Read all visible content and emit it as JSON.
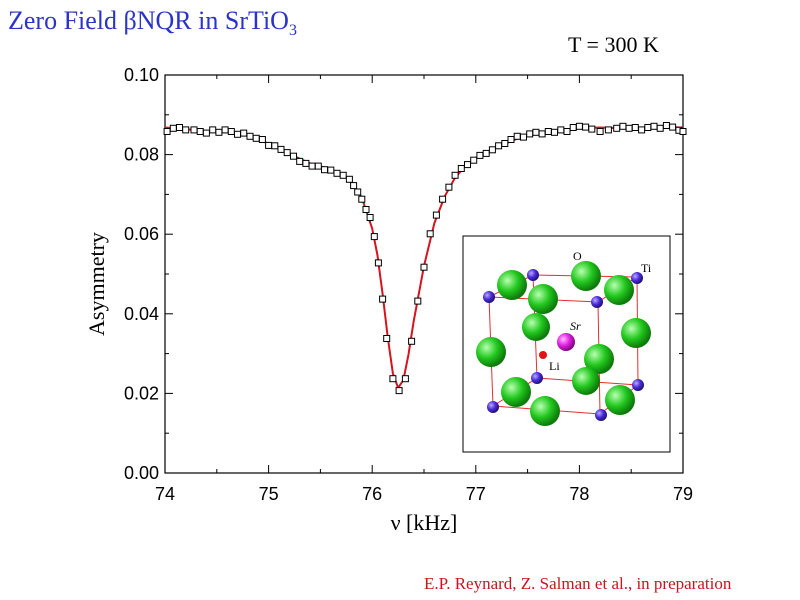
{
  "header": {
    "title_main": "Zero Field βNQR in SrTiO",
    "title_sub": "3",
    "temperature": "T = 300 K"
  },
  "footer": {
    "credit": "E.P. Reynard, Z. Salman et al., in preparation"
  },
  "colors": {
    "title": "#2b33c8",
    "fit": "#d4141e",
    "credit": "#c8141e",
    "oxygen": "#22c81e",
    "ti": "#4a2bd8",
    "sr": "#e01ee0",
    "li": "#e01414"
  },
  "chart_data": {
    "type": "scatter",
    "xlabel": "ν [kHz]",
    "ylabel": "Asymmetry",
    "xlim": [
      74,
      79
    ],
    "ylim": [
      0.0,
      0.1
    ],
    "xticks": [
      74,
      75,
      76,
      77,
      78,
      79
    ],
    "xtick_labels": [
      "74",
      "75",
      "76",
      "77",
      "78",
      "79"
    ],
    "yticks": [
      0.0,
      0.02,
      0.04,
      0.06,
      0.08,
      0.1
    ],
    "ytick_labels": [
      "0.00",
      "0.02",
      "0.04",
      "0.06",
      "0.08",
      "0.10"
    ],
    "grid": false,
    "series": [
      {
        "kind": "data",
        "marker": "open-square",
        "points": [
          [
            74.02,
            0.0858
          ],
          [
            74.08,
            0.0866
          ],
          [
            74.14,
            0.0868
          ],
          [
            74.2,
            0.0862
          ],
          [
            74.28,
            0.0862
          ],
          [
            74.34,
            0.0858
          ],
          [
            74.4,
            0.0854
          ],
          [
            74.46,
            0.0862
          ],
          [
            74.52,
            0.0856
          ],
          [
            74.58,
            0.0862
          ],
          [
            74.64,
            0.0858
          ],
          [
            74.7,
            0.0851
          ],
          [
            74.76,
            0.0854
          ],
          [
            74.82,
            0.0846
          ],
          [
            74.88,
            0.0841
          ],
          [
            74.94,
            0.0838
          ],
          [
            75.0,
            0.0823
          ],
          [
            75.06,
            0.0822
          ],
          [
            75.12,
            0.0813
          ],
          [
            75.18,
            0.0805
          ],
          [
            75.24,
            0.0796
          ],
          [
            75.3,
            0.0783
          ],
          [
            75.36,
            0.0778
          ],
          [
            75.42,
            0.0771
          ],
          [
            75.48,
            0.0771
          ],
          [
            75.54,
            0.0762
          ],
          [
            75.6,
            0.0761
          ],
          [
            75.66,
            0.0753
          ],
          [
            75.72,
            0.0748
          ],
          [
            75.78,
            0.0738
          ],
          [
            75.82,
            0.0722
          ],
          [
            75.86,
            0.0706
          ],
          [
            75.9,
            0.0688
          ],
          [
            75.94,
            0.0662
          ],
          [
            75.98,
            0.0642
          ],
          [
            76.02,
            0.0594
          ],
          [
            76.06,
            0.0528
          ],
          [
            76.1,
            0.0437
          ],
          [
            76.14,
            0.0338
          ],
          [
            76.2,
            0.0237
          ],
          [
            76.26,
            0.0207
          ],
          [
            76.32,
            0.0237
          ],
          [
            76.38,
            0.0331
          ],
          [
            76.44,
            0.0432
          ],
          [
            76.5,
            0.0517
          ],
          [
            76.56,
            0.0601
          ],
          [
            76.62,
            0.0648
          ],
          [
            76.68,
            0.0688
          ],
          [
            76.74,
            0.0718
          ],
          [
            76.8,
            0.0748
          ],
          [
            76.86,
            0.0765
          ],
          [
            76.92,
            0.0775
          ],
          [
            76.98,
            0.0786
          ],
          [
            77.04,
            0.0798
          ],
          [
            77.1,
            0.0803
          ],
          [
            77.16,
            0.0812
          ],
          [
            77.22,
            0.0822
          ],
          [
            77.28,
            0.0828
          ],
          [
            77.34,
            0.0838
          ],
          [
            77.4,
            0.0846
          ],
          [
            77.46,
            0.0844
          ],
          [
            77.52,
            0.0852
          ],
          [
            77.58,
            0.0856
          ],
          [
            77.64,
            0.0852
          ],
          [
            77.7,
            0.0858
          ],
          [
            77.76,
            0.0856
          ],
          [
            77.82,
            0.0862
          ],
          [
            77.88,
            0.0858
          ],
          [
            77.94,
            0.0868
          ],
          [
            78.0,
            0.0871
          ],
          [
            78.06,
            0.0869
          ],
          [
            78.12,
            0.0864
          ],
          [
            78.2,
            0.0858
          ],
          [
            78.28,
            0.0862
          ],
          [
            78.36,
            0.0866
          ],
          [
            78.42,
            0.0871
          ],
          [
            78.48,
            0.0866
          ],
          [
            78.54,
            0.0868
          ],
          [
            78.6,
            0.0862
          ],
          [
            78.66,
            0.0868
          ],
          [
            78.72,
            0.0871
          ],
          [
            78.78,
            0.0866
          ],
          [
            78.84,
            0.0873
          ],
          [
            78.9,
            0.0869
          ],
          [
            78.96,
            0.0861
          ],
          [
            79.0,
            0.0858
          ]
        ]
      },
      {
        "kind": "fit",
        "style": "red-line",
        "points": [
          [
            74.0,
            0.0868
          ],
          [
            74.2,
            0.0864
          ],
          [
            74.4,
            0.0858
          ],
          [
            74.6,
            0.0856
          ],
          [
            74.8,
            0.0847
          ],
          [
            75.0,
            0.0828
          ],
          [
            75.2,
            0.0802
          ],
          [
            75.4,
            0.0778
          ],
          [
            75.6,
            0.0763
          ],
          [
            75.7,
            0.0752
          ],
          [
            75.8,
            0.0733
          ],
          [
            75.9,
            0.0692
          ],
          [
            76.0,
            0.0614
          ],
          [
            76.05,
            0.0548
          ],
          [
            76.1,
            0.045
          ],
          [
            76.15,
            0.0342
          ],
          [
            76.2,
            0.025
          ],
          [
            76.25,
            0.0214
          ],
          [
            76.3,
            0.0233
          ],
          [
            76.35,
            0.0298
          ],
          [
            76.4,
            0.038
          ],
          [
            76.5,
            0.052
          ],
          [
            76.6,
            0.0628
          ],
          [
            76.7,
            0.0695
          ],
          [
            76.8,
            0.0742
          ],
          [
            76.9,
            0.0772
          ],
          [
            77.0,
            0.0792
          ],
          [
            77.2,
            0.0818
          ],
          [
            77.4,
            0.084
          ],
          [
            77.6,
            0.0853
          ],
          [
            77.8,
            0.0858
          ],
          [
            78.0,
            0.0866
          ],
          [
            78.2,
            0.0868
          ],
          [
            78.4,
            0.0866
          ],
          [
            78.6,
            0.0866
          ],
          [
            78.8,
            0.0869
          ],
          [
            79.0,
            0.0868
          ]
        ]
      }
    ]
  },
  "inset": {
    "labels": {
      "o": "O",
      "ti": "Ti",
      "sr": "Sr",
      "li": "Li"
    }
  }
}
